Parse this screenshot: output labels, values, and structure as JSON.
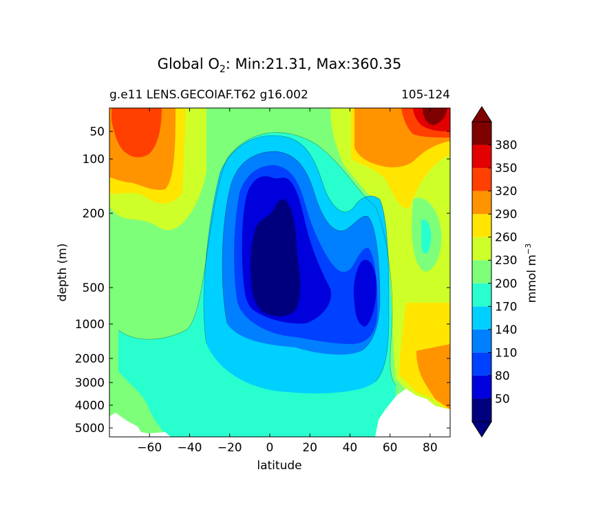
{
  "chart_data": {
    "type": "heatmap",
    "title_prefix": "Global O",
    "title_subscript": "2",
    "title_suffix": ": Min:21.31, Max:360.35",
    "subtitle_left": "g.e11 LENS.GECOIAF.T62 g16.002",
    "subtitle_right": "105-124",
    "xlabel": "latitude",
    "ylabel": "depth (m)",
    "xlim": [
      -80,
      90
    ],
    "x_ticks": [
      -60,
      -40,
      -20,
      0,
      20,
      40,
      60,
      80
    ],
    "x_tick_labels": [
      "−60",
      "−40",
      "−20",
      "0",
      "20",
      "40",
      "60",
      "80"
    ],
    "ylim_depth": [
      10,
      5500
    ],
    "y_ticks": [
      50,
      100,
      200,
      500,
      1000,
      2000,
      3000,
      4000,
      5000
    ],
    "y_tick_labels": [
      "50",
      "100",
      "200",
      "500",
      "1000",
      "2000",
      "3000",
      "4000",
      "5000"
    ],
    "colorbar": {
      "label_main": "mmol m",
      "label_exp": "−3",
      "levels": [
        20,
        50,
        80,
        110,
        140,
        170,
        200,
        230,
        260,
        290,
        320,
        350,
        380,
        410
      ],
      "tick_labels": [
        "50",
        "80",
        "110",
        "140",
        "170",
        "200",
        "230",
        "260",
        "290",
        "320",
        "350",
        "380"
      ],
      "colors": [
        "#00007f",
        "#0000dc",
        "#0040ff",
        "#0080ff",
        "#00d0ff",
        "#29ffce",
        "#7dff7a",
        "#ceff29",
        "#ffe500",
        "#ff9400",
        "#ff4000",
        "#e30000",
        "#7f0000"
      ],
      "extend_under": "#000080",
      "extend_over": "#800000"
    },
    "min": 21.31,
    "max": 360.35
  }
}
